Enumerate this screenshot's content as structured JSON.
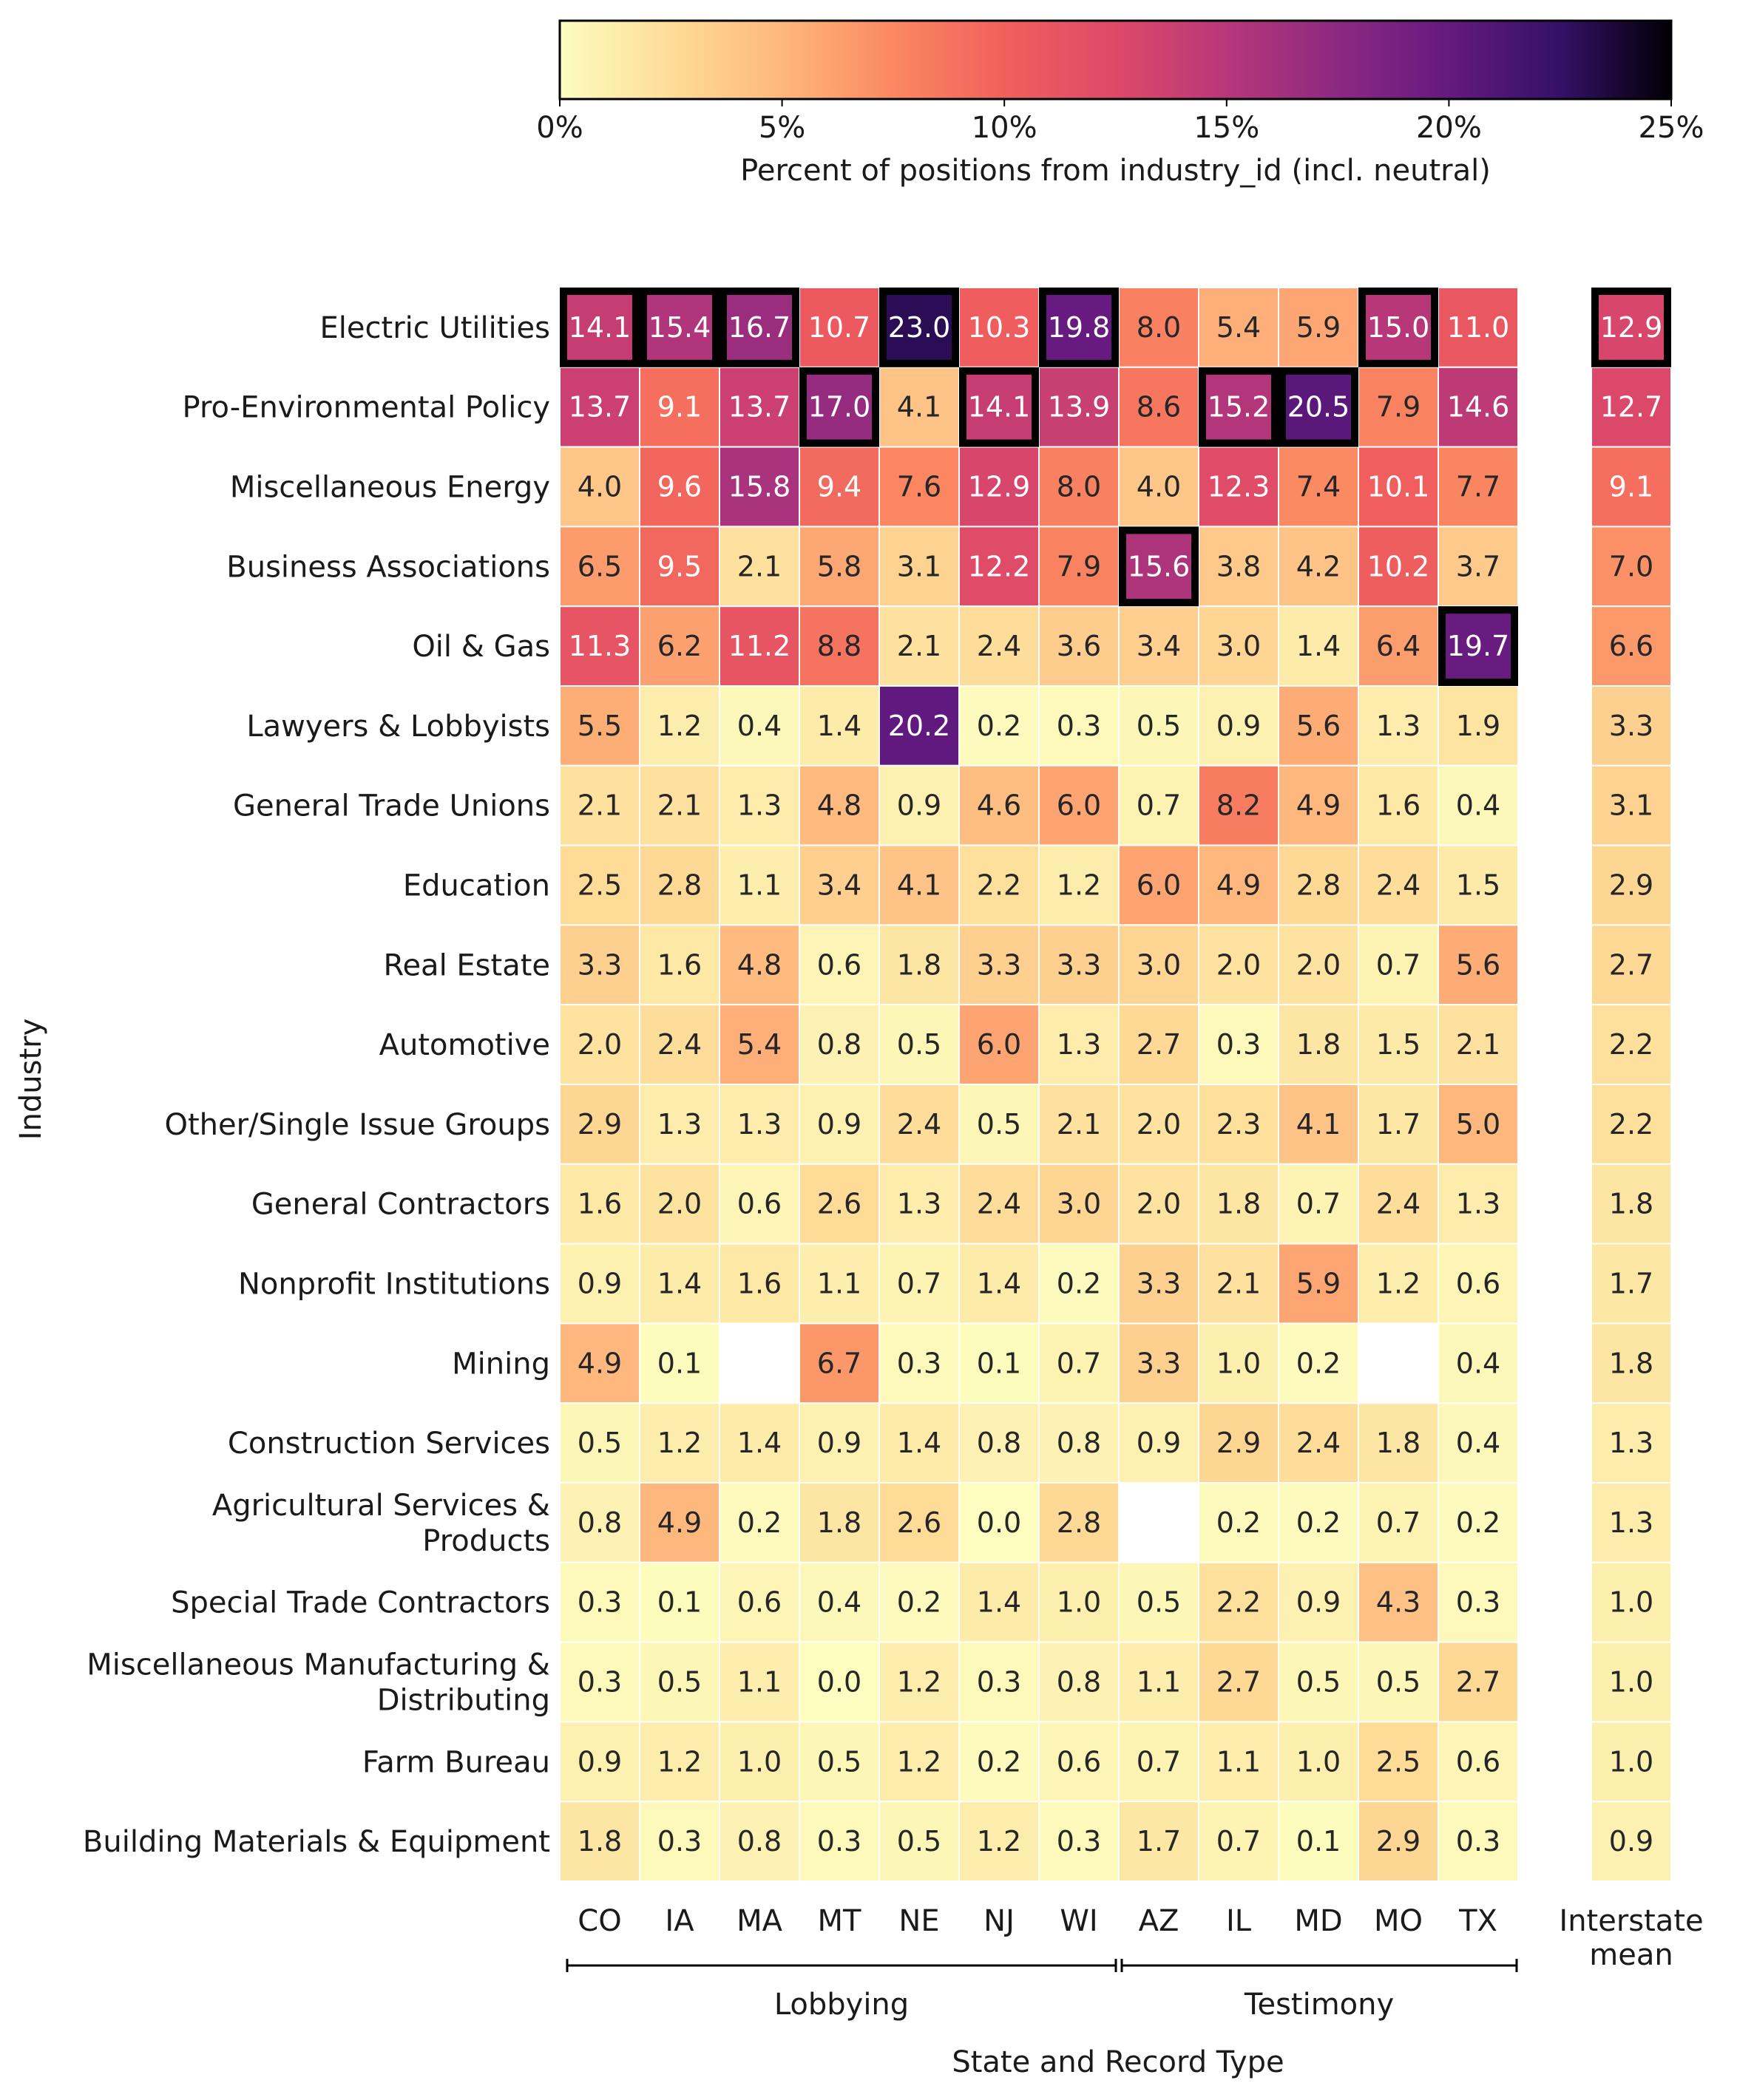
{
  "chart_data": {
    "type": "heatmap",
    "colorbar": {
      "ticks": [
        "0%",
        "5%",
        "10%",
        "15%",
        "20%",
        "25%"
      ],
      "range": [
        0,
        25
      ],
      "label": "Percent of positions from industry_id (incl. neutral)",
      "colormap": "magma_r"
    },
    "ylabel": "Industry",
    "xlabel": "State and Record Type",
    "groups": [
      {
        "label": "Lobbying",
        "columns": [
          "CO",
          "IA",
          "MA",
          "MT",
          "NE",
          "NJ",
          "WI"
        ]
      },
      {
        "label": "Testimony",
        "columns": [
          "AZ",
          "IL",
          "MD",
          "MO",
          "TX"
        ]
      }
    ],
    "columns": [
      "CO",
      "IA",
      "MA",
      "MT",
      "NE",
      "NJ",
      "WI",
      "AZ",
      "IL",
      "MD",
      "MO",
      "TX"
    ],
    "mean_column_label": [
      "Interstate",
      "mean"
    ],
    "rows": [
      {
        "label": [
          "Electric Utilities"
        ],
        "values": [
          14.1,
          15.4,
          16.7,
          10.7,
          23.0,
          10.3,
          19.8,
          8.0,
          5.4,
          5.9,
          15.0,
          11.0
        ],
        "mean": 12.9
      },
      {
        "label": [
          "Pro-Environmental Policy"
        ],
        "values": [
          13.7,
          9.1,
          13.7,
          17.0,
          4.1,
          14.1,
          13.9,
          8.6,
          15.2,
          20.5,
          7.9,
          14.6
        ],
        "mean": 12.7
      },
      {
        "label": [
          "Miscellaneous Energy"
        ],
        "values": [
          4.0,
          9.6,
          15.8,
          9.4,
          7.6,
          12.9,
          8.0,
          4.0,
          12.3,
          7.4,
          10.1,
          7.7
        ],
        "mean": 9.1
      },
      {
        "label": [
          "Business Associations"
        ],
        "values": [
          6.5,
          9.5,
          2.1,
          5.8,
          3.1,
          12.2,
          7.9,
          15.6,
          3.8,
          4.2,
          10.2,
          3.7
        ],
        "mean": 7.0
      },
      {
        "label": [
          "Oil & Gas"
        ],
        "values": [
          11.3,
          6.2,
          11.2,
          8.8,
          2.1,
          2.4,
          3.6,
          3.4,
          3.0,
          1.4,
          6.4,
          19.7
        ],
        "mean": 6.6
      },
      {
        "label": [
          "Lawyers & Lobbyists"
        ],
        "values": [
          5.5,
          1.2,
          0.4,
          1.4,
          20.2,
          0.2,
          0.3,
          0.5,
          0.9,
          5.6,
          1.3,
          1.9
        ],
        "mean": 3.3
      },
      {
        "label": [
          "General Trade Unions"
        ],
        "values": [
          2.1,
          2.1,
          1.3,
          4.8,
          0.9,
          4.6,
          6.0,
          0.7,
          8.2,
          4.9,
          1.6,
          0.4
        ],
        "mean": 3.1
      },
      {
        "label": [
          "Education"
        ],
        "values": [
          2.5,
          2.8,
          1.1,
          3.4,
          4.1,
          2.2,
          1.2,
          6.0,
          4.9,
          2.8,
          2.4,
          1.5
        ],
        "mean": 2.9
      },
      {
        "label": [
          "Real Estate"
        ],
        "values": [
          3.3,
          1.6,
          4.8,
          0.6,
          1.8,
          3.3,
          3.3,
          3.0,
          2.0,
          2.0,
          0.7,
          5.6
        ],
        "mean": 2.7
      },
      {
        "label": [
          "Automotive"
        ],
        "values": [
          2.0,
          2.4,
          5.4,
          0.8,
          0.5,
          6.0,
          1.3,
          2.7,
          0.3,
          1.8,
          1.5,
          2.1
        ],
        "mean": 2.2
      },
      {
        "label": [
          "Other/Single Issue Groups"
        ],
        "values": [
          2.9,
          1.3,
          1.3,
          0.9,
          2.4,
          0.5,
          2.1,
          2.0,
          2.3,
          4.1,
          1.7,
          5.0
        ],
        "mean": 2.2
      },
      {
        "label": [
          "General Contractors"
        ],
        "values": [
          1.6,
          2.0,
          0.6,
          2.6,
          1.3,
          2.4,
          3.0,
          2.0,
          1.8,
          0.7,
          2.4,
          1.3
        ],
        "mean": 1.8
      },
      {
        "label": [
          "Nonprofit Institutions"
        ],
        "values": [
          0.9,
          1.4,
          1.6,
          1.1,
          0.7,
          1.4,
          0.2,
          3.3,
          2.1,
          5.9,
          1.2,
          0.6
        ],
        "mean": 1.7
      },
      {
        "label": [
          "Mining"
        ],
        "values": [
          4.9,
          0.1,
          null,
          6.7,
          0.3,
          0.1,
          0.7,
          3.3,
          1.0,
          0.2,
          null,
          0.4
        ],
        "mean": 1.8
      },
      {
        "label": [
          "Construction Services"
        ],
        "values": [
          0.5,
          1.2,
          1.4,
          0.9,
          1.4,
          0.8,
          0.8,
          0.9,
          2.9,
          2.4,
          1.8,
          0.4
        ],
        "mean": 1.3
      },
      {
        "label": [
          "Agricultural Services &",
          "Products"
        ],
        "values": [
          0.8,
          4.9,
          0.2,
          1.8,
          2.6,
          0.0,
          2.8,
          null,
          0.2,
          0.2,
          0.7,
          0.2
        ],
        "mean": 1.3
      },
      {
        "label": [
          "Special Trade Contractors"
        ],
        "values": [
          0.3,
          0.1,
          0.6,
          0.4,
          0.2,
          1.4,
          1.0,
          0.5,
          2.2,
          0.9,
          4.3,
          0.3
        ],
        "mean": 1.0
      },
      {
        "label": [
          "Miscellaneous Manufacturing &",
          "Distributing"
        ],
        "values": [
          0.3,
          0.5,
          1.1,
          0.0,
          1.2,
          0.3,
          0.8,
          1.1,
          2.7,
          0.5,
          0.5,
          2.7
        ],
        "mean": 1.0
      },
      {
        "label": [
          "Farm Bureau"
        ],
        "values": [
          0.9,
          1.2,
          1.0,
          0.5,
          1.2,
          0.2,
          0.6,
          0.7,
          1.1,
          1.0,
          2.5,
          0.6
        ],
        "mean": 1.0
      },
      {
        "label": [
          "Building Materials & Equipment"
        ],
        "values": [
          1.8,
          0.3,
          0.8,
          0.3,
          0.5,
          1.2,
          0.3,
          1.7,
          0.7,
          0.1,
          2.9,
          0.3
        ],
        "mean": 0.9
      }
    ]
  }
}
